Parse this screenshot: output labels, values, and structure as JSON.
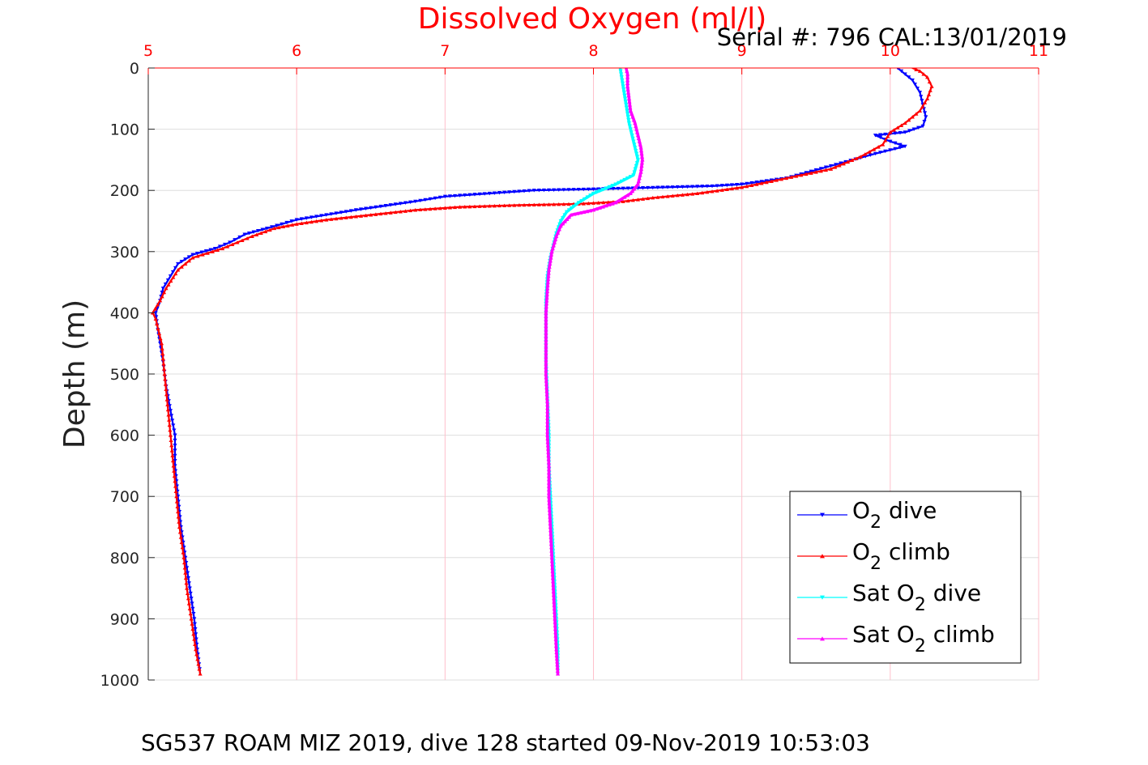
{
  "chart_data": {
    "type": "line",
    "title": "Dissolved Oxygen (ml/l)",
    "subtitle": "Serial #: 796  CAL:13/01/2019",
    "footer": "SG537 ROAM MIZ 2019, dive 128 started 09-Nov-2019 10:53:03",
    "xlabel": "",
    "ylabel": "Depth (m)",
    "xlim": [
      5,
      11
    ],
    "ylim": [
      0,
      1000
    ],
    "y_reversed": true,
    "x_axis_location": "top",
    "xticks": [
      5,
      6,
      7,
      8,
      9,
      10,
      11
    ],
    "yticks": [
      0,
      100,
      200,
      300,
      400,
      500,
      600,
      700,
      800,
      900,
      1000
    ],
    "grid": true,
    "legend_position": "lower-right",
    "colors": {
      "title": "#ff0000",
      "x_tick": "#ff0000",
      "x_grid": "#ffc0cb",
      "y_grid": "#dddddd",
      "text": "#000000"
    },
    "series": [
      {
        "name": "O2 dive",
        "legend": {
          "pre": "O",
          "sub": "2",
          "post": " dive"
        },
        "color": "#0000ff",
        "marker": "triangle-down",
        "points": [
          [
            10.05,
            0
          ],
          [
            10.1,
            10
          ],
          [
            10.15,
            20
          ],
          [
            10.2,
            40
          ],
          [
            10.22,
            60
          ],
          [
            10.24,
            80
          ],
          [
            10.22,
            95
          ],
          [
            10.1,
            105
          ],
          [
            9.9,
            110
          ],
          [
            10.0,
            120
          ],
          [
            10.1,
            128
          ],
          [
            9.9,
            140
          ],
          [
            9.6,
            160
          ],
          [
            9.3,
            180
          ],
          [
            9.0,
            190
          ],
          [
            8.8,
            193
          ],
          [
            8.0,
            198
          ],
          [
            7.6,
            200
          ],
          [
            7.3,
            205
          ],
          [
            7.0,
            210
          ],
          [
            6.8,
            218
          ],
          [
            6.6,
            225
          ],
          [
            6.4,
            232
          ],
          [
            6.2,
            240
          ],
          [
            6.0,
            248
          ],
          [
            5.9,
            255
          ],
          [
            5.8,
            262
          ],
          [
            5.65,
            272
          ],
          [
            5.55,
            285
          ],
          [
            5.45,
            295
          ],
          [
            5.3,
            305
          ],
          [
            5.2,
            320
          ],
          [
            5.15,
            340
          ],
          [
            5.1,
            360
          ],
          [
            5.08,
            380
          ],
          [
            5.05,
            400
          ],
          [
            5.06,
            420
          ],
          [
            5.08,
            450
          ],
          [
            5.1,
            480
          ],
          [
            5.12,
            520
          ],
          [
            5.15,
            560
          ],
          [
            5.18,
            600
          ],
          [
            5.18,
            650
          ],
          [
            5.2,
            700
          ],
          [
            5.22,
            750
          ],
          [
            5.25,
            800
          ],
          [
            5.28,
            850
          ],
          [
            5.31,
            900
          ],
          [
            5.33,
            950
          ],
          [
            5.35,
            990
          ]
        ]
      },
      {
        "name": "O2 climb",
        "legend": {
          "pre": "O",
          "sub": "2",
          "post": " climb"
        },
        "color": "#ff0000",
        "marker": "triangle-up",
        "points": [
          [
            5.35,
            990
          ],
          [
            5.32,
            950
          ],
          [
            5.29,
            900
          ],
          [
            5.26,
            850
          ],
          [
            5.24,
            800
          ],
          [
            5.21,
            750
          ],
          [
            5.19,
            700
          ],
          [
            5.17,
            650
          ],
          [
            5.15,
            600
          ],
          [
            5.13,
            550
          ],
          [
            5.11,
            500
          ],
          [
            5.09,
            450
          ],
          [
            5.05,
            410
          ],
          [
            5.03,
            400
          ],
          [
            5.08,
            380
          ],
          [
            5.12,
            360
          ],
          [
            5.2,
            330
          ],
          [
            5.3,
            310
          ],
          [
            5.5,
            295
          ],
          [
            5.6,
            285
          ],
          [
            5.7,
            275
          ],
          [
            5.85,
            262
          ],
          [
            6.0,
            255
          ],
          [
            6.2,
            248
          ],
          [
            6.5,
            240
          ],
          [
            6.8,
            232
          ],
          [
            7.1,
            227
          ],
          [
            7.5,
            224
          ],
          [
            7.9,
            222
          ],
          [
            8.2,
            218
          ],
          [
            8.4,
            212
          ],
          [
            8.7,
            205
          ],
          [
            9.0,
            195
          ],
          [
            9.2,
            185
          ],
          [
            9.4,
            175
          ],
          [
            9.6,
            165
          ],
          [
            9.8,
            145
          ],
          [
            9.95,
            125
          ],
          [
            10.0,
            105
          ],
          [
            10.1,
            90
          ],
          [
            10.2,
            70
          ],
          [
            10.25,
            50
          ],
          [
            10.28,
            30
          ],
          [
            10.25,
            15
          ],
          [
            10.2,
            5
          ],
          [
            10.15,
            0
          ]
        ]
      },
      {
        "name": "Sat O2 dive",
        "legend": {
          "pre": "Sat O",
          "sub": "2",
          "post": " dive"
        },
        "color": "#00ffff",
        "marker": "triangle-down",
        "points": [
          [
            8.18,
            0
          ],
          [
            8.2,
            30
          ],
          [
            8.22,
            60
          ],
          [
            8.24,
            90
          ],
          [
            8.26,
            110
          ],
          [
            8.28,
            130
          ],
          [
            8.3,
            150
          ],
          [
            8.27,
            175
          ],
          [
            8.15,
            190
          ],
          [
            8.0,
            205
          ],
          [
            7.9,
            220
          ],
          [
            7.82,
            235
          ],
          [
            7.78,
            250
          ],
          [
            7.75,
            270
          ],
          [
            7.73,
            290
          ],
          [
            7.71,
            310
          ],
          [
            7.69,
            340
          ],
          [
            7.68,
            380
          ],
          [
            7.68,
            420
          ],
          [
            7.68,
            480
          ],
          [
            7.69,
            540
          ],
          [
            7.7,
            600
          ],
          [
            7.7,
            650
          ],
          [
            7.71,
            700
          ],
          [
            7.72,
            750
          ],
          [
            7.73,
            800
          ],
          [
            7.74,
            850
          ],
          [
            7.75,
            900
          ],
          [
            7.76,
            950
          ],
          [
            7.76,
            990
          ]
        ]
      },
      {
        "name": "Sat O2 climb",
        "legend": {
          "pre": "Sat O",
          "sub": "2",
          "post": " climb"
        },
        "color": "#ff00ff",
        "marker": "triangle-up",
        "points": [
          [
            7.76,
            990
          ],
          [
            7.75,
            950
          ],
          [
            7.74,
            900
          ],
          [
            7.73,
            850
          ],
          [
            7.72,
            800
          ],
          [
            7.71,
            750
          ],
          [
            7.7,
            700
          ],
          [
            7.7,
            650
          ],
          [
            7.69,
            600
          ],
          [
            7.69,
            550
          ],
          [
            7.68,
            500
          ],
          [
            7.68,
            450
          ],
          [
            7.68,
            400
          ],
          [
            7.69,
            360
          ],
          [
            7.7,
            330
          ],
          [
            7.72,
            300
          ],
          [
            7.75,
            275
          ],
          [
            7.78,
            258
          ],
          [
            7.85,
            240
          ],
          [
            8.0,
            232
          ],
          [
            8.15,
            220
          ],
          [
            8.25,
            205
          ],
          [
            8.3,
            190
          ],
          [
            8.32,
            170
          ],
          [
            8.33,
            150
          ],
          [
            8.32,
            130
          ],
          [
            8.3,
            110
          ],
          [
            8.28,
            90
          ],
          [
            8.25,
            70
          ],
          [
            8.24,
            50
          ],
          [
            8.23,
            30
          ],
          [
            8.23,
            10
          ],
          [
            8.22,
            0
          ]
        ]
      }
    ]
  }
}
